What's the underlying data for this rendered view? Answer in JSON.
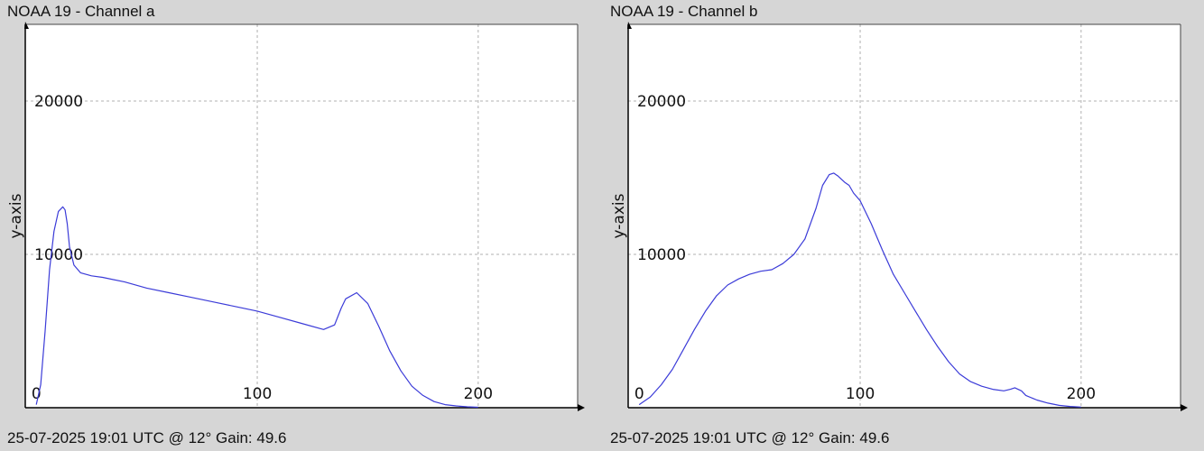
{
  "charts": [
    {
      "id": "a",
      "title": "NOAA 19 - Channel a",
      "footer": "25-07-2025 19:01 UTC @ 12° Gain: 49.6",
      "chart_data": {
        "type": "line",
        "title": "NOAA 19 - Channel a",
        "xlabel": "",
        "ylabel": "y-axis",
        "xlim": [
          -5,
          245
        ],
        "ylim": [
          0,
          25000
        ],
        "x_ticks": [
          0,
          100,
          200
        ],
        "y_ticks": [
          10000,
          20000
        ],
        "grid": true,
        "line_color": "#3b3bd8",
        "series": [
          {
            "x": [
              0,
              2,
              4,
              6,
              8,
              10,
              12,
              13,
              14,
              15,
              17,
              20,
              25,
              30,
              40,
              50,
              60,
              70,
              80,
              90,
              100,
              110,
              120,
              130,
              135,
              138,
              140,
              145,
              150,
              155,
              160,
              165,
              170,
              175,
              180,
              185,
              190,
              195,
              200
            ],
            "y": [
              200,
              1500,
              5000,
              9000,
              11500,
              12800,
              13100,
              12900,
              12000,
              10500,
              9300,
              8800,
              8600,
              8500,
              8200,
              7800,
              7500,
              7200,
              6900,
              6600,
              6300,
              5900,
              5500,
              5100,
              5400,
              6500,
              7100,
              7500,
              6800,
              5300,
              3700,
              2400,
              1400,
              800,
              400,
              200,
              120,
              60,
              30
            ]
          }
        ]
      }
    },
    {
      "id": "b",
      "title": "NOAA 19 - Channel b",
      "footer": "25-07-2025 19:01 UTC @ 12° Gain: 49.6",
      "chart_data": {
        "type": "line",
        "title": "NOAA 19 - Channel b",
        "xlabel": "",
        "ylabel": "y-axis",
        "xlim": [
          -5,
          245
        ],
        "ylim": [
          0,
          25000
        ],
        "x_ticks": [
          0,
          100,
          200
        ],
        "y_ticks": [
          10000,
          20000
        ],
        "grid": true,
        "line_color": "#3b3bd8",
        "series": [
          {
            "x": [
              0,
              5,
              10,
              15,
              20,
              25,
              30,
              35,
              40,
              45,
              50,
              55,
              60,
              65,
              70,
              75,
              80,
              83,
              86,
              88,
              90,
              93,
              95,
              97,
              100,
              105,
              110,
              115,
              120,
              125,
              130,
              135,
              140,
              145,
              150,
              155,
              160,
              165,
              168,
              170,
              173,
              175,
              180,
              185,
              190,
              195,
              200
            ],
            "y": [
              200,
              700,
              1500,
              2500,
              3800,
              5100,
              6300,
              7300,
              8000,
              8400,
              8700,
              8900,
              9000,
              9400,
              10000,
              11000,
              13000,
              14500,
              15200,
              15300,
              15100,
              14700,
              14500,
              14000,
              13500,
              12000,
              10300,
              8700,
              7500,
              6300,
              5100,
              4000,
              3000,
              2200,
              1700,
              1400,
              1200,
              1100,
              1200,
              1300,
              1100,
              800,
              500,
              300,
              150,
              80,
              40
            ]
          }
        ]
      }
    }
  ]
}
